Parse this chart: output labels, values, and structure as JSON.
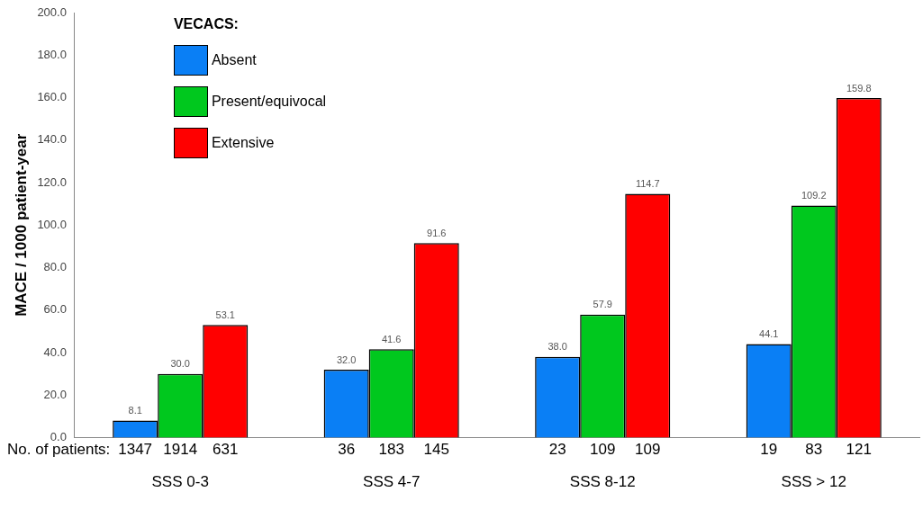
{
  "chart_data": {
    "type": "bar",
    "ylabel": "MACE / 1000 patient-year",
    "legend_title": "VECACS:",
    "legend": "top left",
    "categories": [
      "SSS 0-3",
      "SSS 4-7",
      "SSS 8-12",
      "SSS > 12"
    ],
    "series": [
      {
        "name": "Absent",
        "color": "#0a7ff5",
        "values": [
          8.1,
          32.0,
          38.0,
          44.1
        ],
        "value_labels": [
          "8.1",
          "32.0",
          "38.0",
          "44.1"
        ]
      },
      {
        "name": "Present/equivocal",
        "color": "#00c81e",
        "values": [
          30.0,
          41.6,
          57.9,
          109.2
        ],
        "value_labels": [
          "30.0",
          "41.6",
          "57.9",
          "109.2"
        ]
      },
      {
        "name": "Extensive",
        "color": "#ff0000",
        "values": [
          53.1,
          91.6,
          114.7,
          159.8
        ],
        "value_labels": [
          "53.1",
          "91.6",
          "114.7",
          "159.8"
        ]
      }
    ],
    "ylim": [
      0,
      200
    ],
    "yticks": [
      {
        "value": 0,
        "label": "0.0"
      },
      {
        "value": 20,
        "label": "20.0"
      },
      {
        "value": 40,
        "label": "40.0"
      },
      {
        "value": 60,
        "label": "60.0"
      },
      {
        "value": 80,
        "label": "80.0"
      },
      {
        "value": 100,
        "label": "100.0"
      },
      {
        "value": 120,
        "label": "120.0"
      },
      {
        "value": 140,
        "label": "140.0"
      },
      {
        "value": 160,
        "label": "160.0"
      },
      {
        "value": 180,
        "label": "180.0"
      },
      {
        "value": 200,
        "label": "200.0"
      }
    ],
    "grid": false,
    "annotations": [
      "No. of patients:",
      "1347",
      "1914",
      "631",
      "36",
      "183",
      "145",
      "23",
      "109",
      "109",
      "19",
      "83",
      "121"
    ]
  }
}
